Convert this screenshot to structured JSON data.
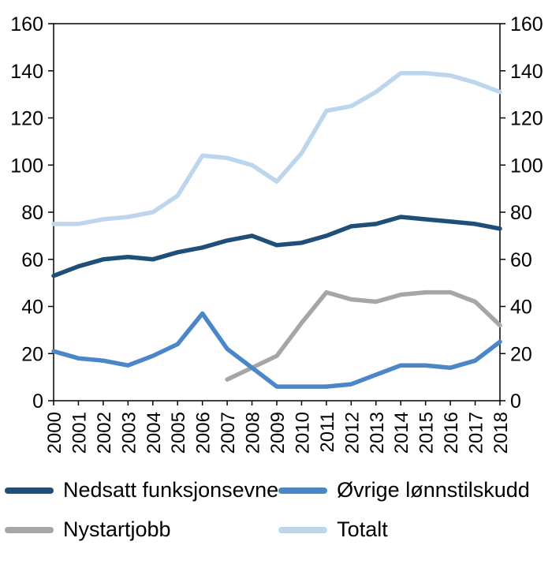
{
  "chart_data": {
    "type": "line",
    "x": [
      2000,
      2001,
      2002,
      2003,
      2004,
      2005,
      2006,
      2007,
      2008,
      2009,
      2010,
      2011,
      2012,
      2013,
      2014,
      2015,
      2016,
      2017,
      2018
    ],
    "ylim": [
      0,
      160
    ],
    "ytick_step": 20,
    "grid": false,
    "legend_position": "bottom",
    "y_axis_sides": "left-and-right",
    "series": [
      {
        "name": "Nedsatt funksjonsevne",
        "color": "#1f4e79",
        "values": [
          53,
          57,
          60,
          61,
          60,
          63,
          65,
          68,
          70,
          66,
          67,
          70,
          74,
          75,
          78,
          77,
          76,
          75,
          73
        ]
      },
      {
        "name": "Øvrige lønnstilskudd",
        "color": "#4a86c8",
        "values": [
          21,
          18,
          17,
          15,
          19,
          24,
          37,
          22,
          14,
          6,
          6,
          6,
          7,
          11,
          15,
          15,
          14,
          17,
          25
        ]
      },
      {
        "name": "Nystartjobb",
        "color": "#a6a6a6",
        "values": [
          null,
          null,
          null,
          null,
          null,
          null,
          null,
          9,
          14,
          19,
          33,
          46,
          43,
          42,
          45,
          46,
          46,
          42,
          32
        ]
      },
      {
        "name": "Totalt",
        "color": "#bdd6ee",
        "values": [
          75,
          75,
          77,
          78,
          80,
          87,
          104,
          103,
          100,
          93,
          105,
          123,
          125,
          131,
          139,
          139,
          138,
          135,
          131
        ]
      }
    ]
  }
}
